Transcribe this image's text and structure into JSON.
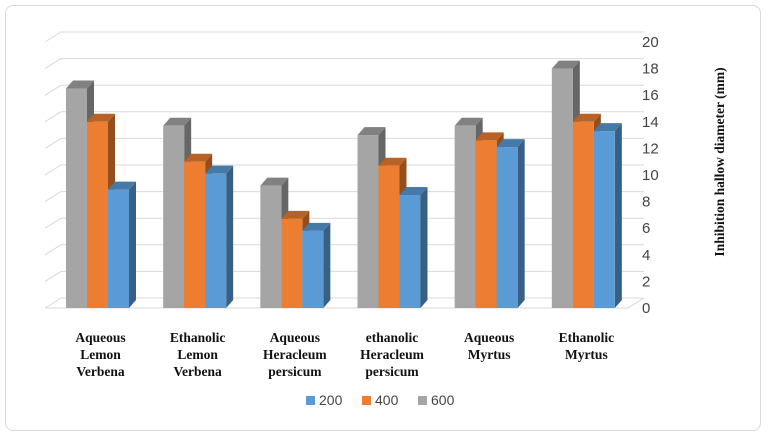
{
  "chart_data": {
    "type": "bar",
    "style": "3d-clustered-column",
    "categories": [
      [
        "Aqueous",
        "Lemon",
        "Verbena"
      ],
      [
        "Ethanolic",
        "Lemon",
        "Verbena"
      ],
      [
        "Aqueous",
        "Heracleum",
        "persicum"
      ],
      [
        "ethanolic",
        "Heracleum",
        "persicum"
      ],
      [
        "Aqueous",
        "Myrtus"
      ],
      [
        "Ethanolic",
        "Myrtus"
      ]
    ],
    "series": [
      {
        "name": "600",
        "color": "#a5a5a5",
        "values": [
          16.5,
          13.7,
          9.2,
          13.0,
          13.7,
          18.0
        ]
      },
      {
        "name": "400",
        "color": "#ed7d31",
        "values": [
          14.0,
          11.0,
          6.7,
          10.7,
          12.6,
          14.0
        ]
      },
      {
        "name": "200",
        "color": "#5b9bd5",
        "values": [
          8.9,
          10.1,
          5.8,
          8.5,
          12.1,
          13.3
        ]
      }
    ],
    "legend_order": [
      "200",
      "400",
      "600"
    ],
    "legend_position": "bottom",
    "ylabel": "Inhibition hallow diameter (mm)",
    "ylim": [
      0,
      20
    ],
    "yticks": [
      "0",
      "2",
      "4",
      "6",
      "8",
      "10",
      "12",
      "14",
      "16",
      "18",
      "20"
    ],
    "yaxis_side": "right",
    "grid": true
  }
}
